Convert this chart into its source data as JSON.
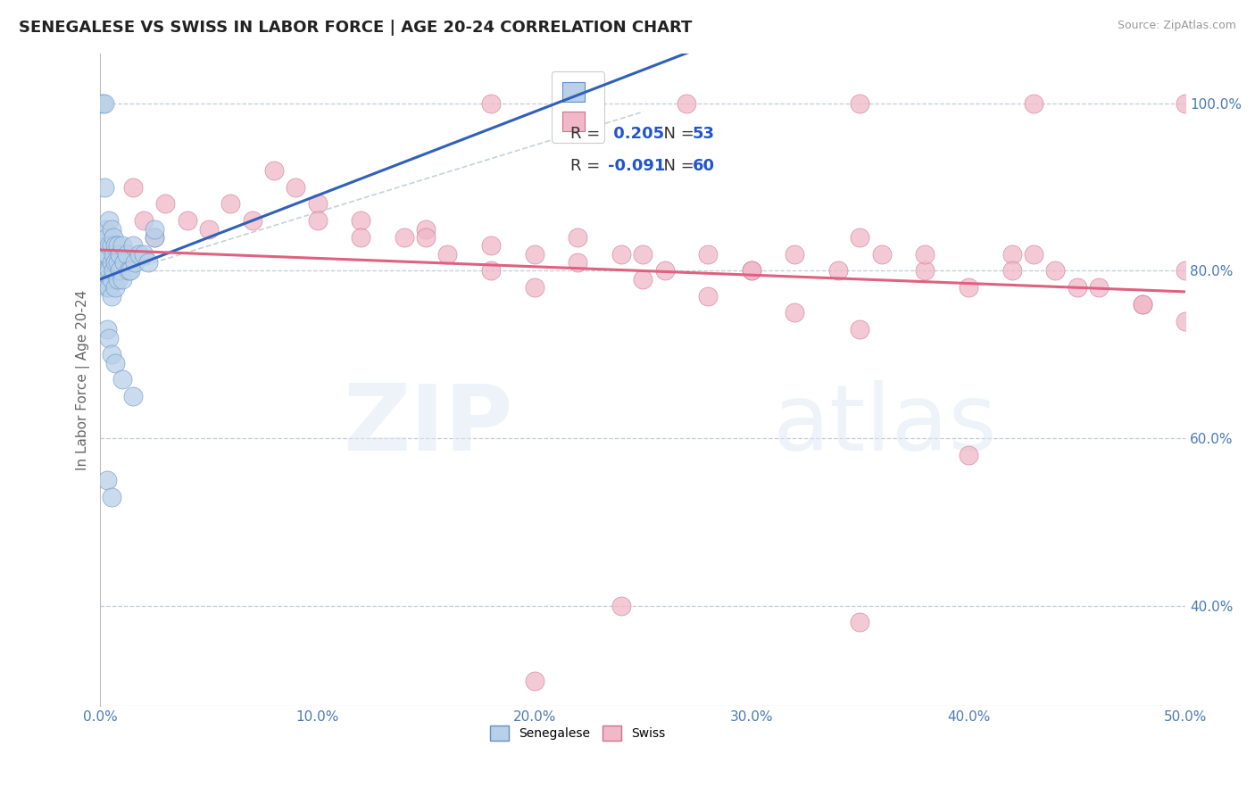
{
  "title": "SENEGALESE VS SWISS IN LABOR FORCE | AGE 20-24 CORRELATION CHART",
  "source": "Source: ZipAtlas.com",
  "ylabel": "In Labor Force | Age 20-24",
  "xlim": [
    0.0,
    0.5
  ],
  "ylim": [
    0.28,
    1.06
  ],
  "xticks": [
    0.0,
    0.1,
    0.2,
    0.3,
    0.4,
    0.5
  ],
  "xticklabels": [
    "0.0%",
    "10.0%",
    "20.0%",
    "30.0%",
    "40.0%",
    "50.0%"
  ],
  "yticks": [
    0.4,
    0.6,
    0.8,
    1.0
  ],
  "yticklabels": [
    "40.0%",
    "60.0%",
    "80.0%",
    "100.0%"
  ],
  "blue_fill": "#b8d0e8",
  "blue_edge": "#6090c8",
  "pink_fill": "#f0b8c8",
  "pink_edge": "#d07090",
  "blue_line": "#3060b8",
  "pink_line": "#e06080",
  "dash_color": "#c0ccd8",
  "legend_blue_R": "0.205",
  "legend_blue_N": "53",
  "legend_pink_R": "-0.091",
  "legend_pink_N": "60",
  "bg": "#ffffff",
  "title_fontsize": 13,
  "tick_fontsize": 11,
  "ylabel_fontsize": 11,
  "R_color": "#2255cc",
  "label_color": "#333333",
  "tick_color": "#4a7ab5",
  "senegalese_x": [
    0.001,
    0.001,
    0.001,
    0.002,
    0.002,
    0.002,
    0.002,
    0.003,
    0.003,
    0.003,
    0.003,
    0.003,
    0.004,
    0.004,
    0.004,
    0.004,
    0.005,
    0.005,
    0.005,
    0.005,
    0.005,
    0.006,
    0.006,
    0.006,
    0.007,
    0.007,
    0.007,
    0.008,
    0.008,
    0.008,
    0.009,
    0.009,
    0.01,
    0.01,
    0.011,
    0.012,
    0.013,
    0.014,
    0.015,
    0.016,
    0.018,
    0.02,
    0.022,
    0.025,
    0.003,
    0.004,
    0.005,
    0.007,
    0.01,
    0.015,
    0.003,
    0.005,
    0.025
  ],
  "senegalese_y": [
    1.0,
    0.82,
    0.79,
    1.0,
    0.9,
    0.85,
    0.8,
    0.84,
    0.82,
    0.8,
    0.79,
    0.78,
    0.86,
    0.83,
    0.8,
    0.78,
    0.85,
    0.83,
    0.81,
    0.79,
    0.77,
    0.84,
    0.82,
    0.8,
    0.83,
    0.81,
    0.78,
    0.83,
    0.81,
    0.79,
    0.82,
    0.8,
    0.83,
    0.79,
    0.81,
    0.82,
    0.8,
    0.8,
    0.83,
    0.81,
    0.82,
    0.82,
    0.81,
    0.84,
    0.73,
    0.72,
    0.7,
    0.69,
    0.67,
    0.65,
    0.55,
    0.53,
    0.85
  ],
  "swiss_x": [
    0.015,
    0.02,
    0.025,
    0.03,
    0.04,
    0.05,
    0.06,
    0.07,
    0.08,
    0.09,
    0.1,
    0.12,
    0.14,
    0.16,
    0.18,
    0.2,
    0.22,
    0.24,
    0.26,
    0.28,
    0.3,
    0.32,
    0.34,
    0.36,
    0.38,
    0.4,
    0.42,
    0.44,
    0.46,
    0.48,
    0.5,
    0.15,
    0.18,
    0.22,
    0.25,
    0.28,
    0.32,
    0.35,
    0.38,
    0.42,
    0.45,
    0.48,
    0.12,
    0.2,
    0.3,
    0.4,
    0.24,
    0.35,
    0.1,
    0.15,
    0.25,
    0.35,
    0.43,
    0.5,
    0.18,
    0.27,
    0.35,
    0.43,
    0.5,
    0.2
  ],
  "swiss_y": [
    0.9,
    0.86,
    0.84,
    0.88,
    0.86,
    0.85,
    0.88,
    0.86,
    0.92,
    0.9,
    0.88,
    0.86,
    0.84,
    0.82,
    0.8,
    0.78,
    0.84,
    0.82,
    0.8,
    0.82,
    0.8,
    0.82,
    0.8,
    0.82,
    0.8,
    0.58,
    0.82,
    0.8,
    0.78,
    0.76,
    0.74,
    0.85,
    0.83,
    0.81,
    0.79,
    0.77,
    0.75,
    0.73,
    0.82,
    0.8,
    0.78,
    0.76,
    0.84,
    0.82,
    0.8,
    0.78,
    0.4,
    0.38,
    0.86,
    0.84,
    0.82,
    0.84,
    0.82,
    0.8,
    1.0,
    1.0,
    1.0,
    1.0,
    1.0,
    0.31
  ]
}
